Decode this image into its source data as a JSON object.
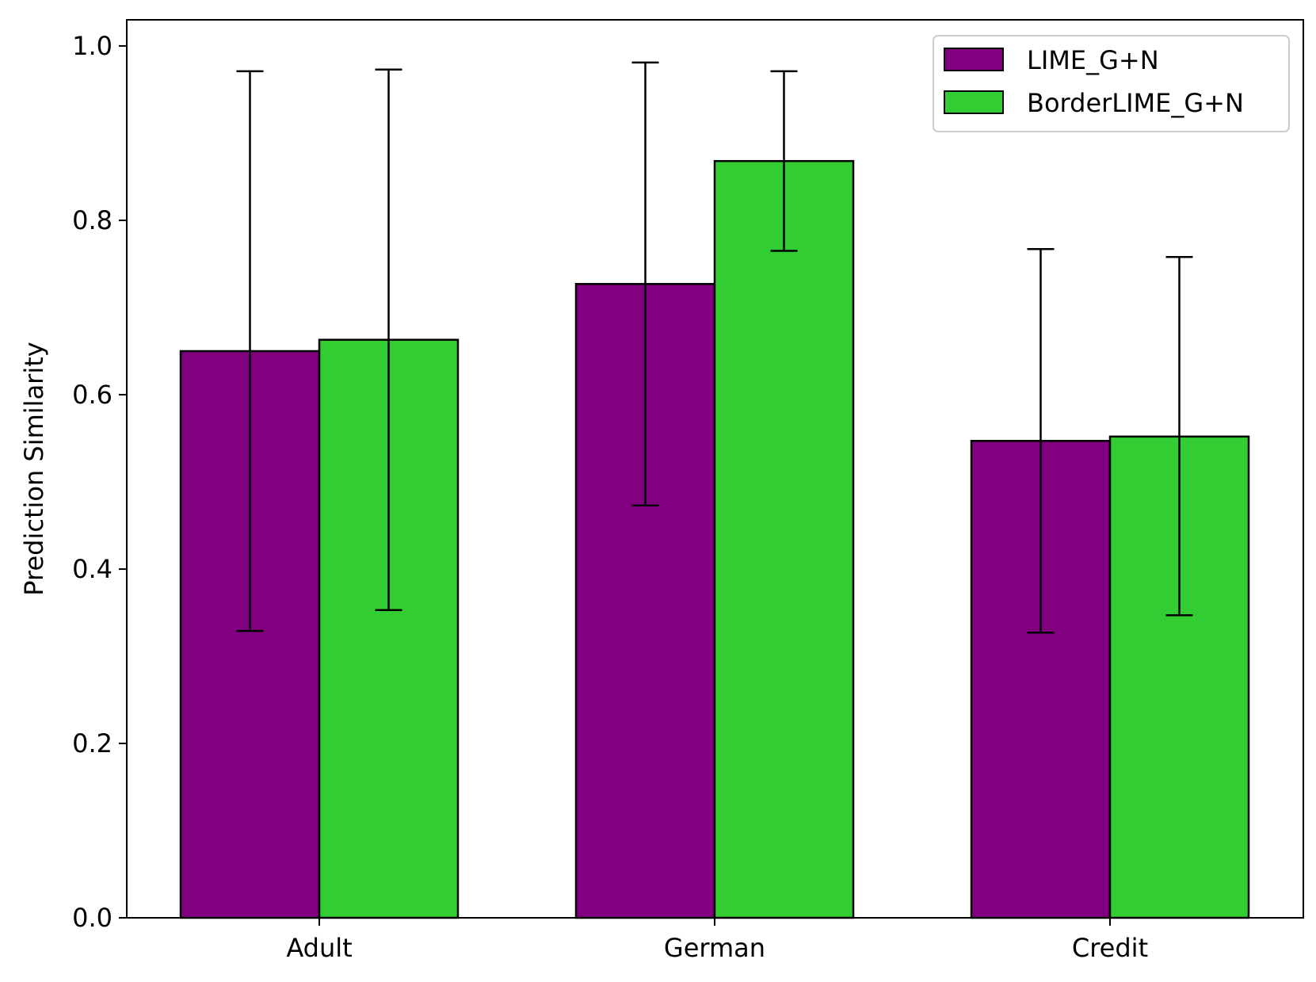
{
  "chart_data": {
    "type": "bar",
    "title": "",
    "xlabel": "",
    "ylabel": "Prediction Similarity",
    "categories": [
      "Adult",
      "German",
      "Credit"
    ],
    "ylim": [
      0,
      1.03
    ],
    "yticks": [
      0.0,
      0.2,
      0.4,
      0.6,
      0.8,
      1.0
    ],
    "ytick_labels": [
      "0.0",
      "0.2",
      "0.4",
      "0.6",
      "0.8",
      "1.0"
    ],
    "grid": false,
    "legend_position": "top-right",
    "series": [
      {
        "name": "LIME_G+N",
        "color": "#800080",
        "values": [
          0.65,
          0.727,
          0.547
        ],
        "error_low": [
          0.329,
          0.473,
          0.327
        ],
        "error_high": [
          0.971,
          0.981,
          0.767
        ]
      },
      {
        "name": "BorderLIME_G+N",
        "color": "#32cd32",
        "values": [
          0.663,
          0.868,
          0.552
        ],
        "error_low": [
          0.353,
          0.765,
          0.347
        ],
        "error_high": [
          0.973,
          0.971,
          0.758
        ]
      }
    ]
  }
}
